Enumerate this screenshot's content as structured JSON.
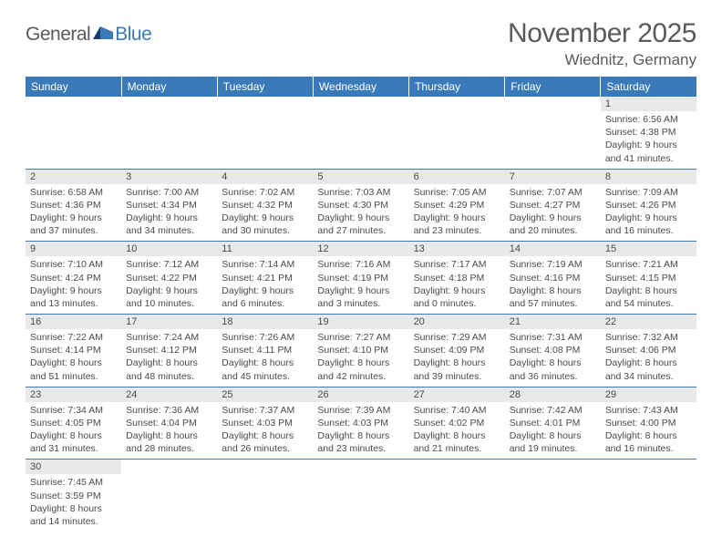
{
  "logo": {
    "text1": "General",
    "text2": "Blue"
  },
  "title": "November 2025",
  "location": "Wiednitz, Germany",
  "colors": {
    "header_bg": "#3a7ab8",
    "daynum_bg": "#e9e9e9",
    "text": "#4a4a4a",
    "rule": "#3a7ab8"
  },
  "weekdays": [
    "Sunday",
    "Monday",
    "Tuesday",
    "Wednesday",
    "Thursday",
    "Friday",
    "Saturday"
  ],
  "weeks": [
    [
      {
        "blank": true
      },
      {
        "blank": true
      },
      {
        "blank": true
      },
      {
        "blank": true
      },
      {
        "blank": true
      },
      {
        "blank": true
      },
      {
        "day": "1",
        "sunrise": "Sunrise: 6:56 AM",
        "sunset": "Sunset: 4:38 PM",
        "dl1": "Daylight: 9 hours",
        "dl2": "and 41 minutes."
      }
    ],
    [
      {
        "day": "2",
        "sunrise": "Sunrise: 6:58 AM",
        "sunset": "Sunset: 4:36 PM",
        "dl1": "Daylight: 9 hours",
        "dl2": "and 37 minutes."
      },
      {
        "day": "3",
        "sunrise": "Sunrise: 7:00 AM",
        "sunset": "Sunset: 4:34 PM",
        "dl1": "Daylight: 9 hours",
        "dl2": "and 34 minutes."
      },
      {
        "day": "4",
        "sunrise": "Sunrise: 7:02 AM",
        "sunset": "Sunset: 4:32 PM",
        "dl1": "Daylight: 9 hours",
        "dl2": "and 30 minutes."
      },
      {
        "day": "5",
        "sunrise": "Sunrise: 7:03 AM",
        "sunset": "Sunset: 4:30 PM",
        "dl1": "Daylight: 9 hours",
        "dl2": "and 27 minutes."
      },
      {
        "day": "6",
        "sunrise": "Sunrise: 7:05 AM",
        "sunset": "Sunset: 4:29 PM",
        "dl1": "Daylight: 9 hours",
        "dl2": "and 23 minutes."
      },
      {
        "day": "7",
        "sunrise": "Sunrise: 7:07 AM",
        "sunset": "Sunset: 4:27 PM",
        "dl1": "Daylight: 9 hours",
        "dl2": "and 20 minutes."
      },
      {
        "day": "8",
        "sunrise": "Sunrise: 7:09 AM",
        "sunset": "Sunset: 4:26 PM",
        "dl1": "Daylight: 9 hours",
        "dl2": "and 16 minutes."
      }
    ],
    [
      {
        "day": "9",
        "sunrise": "Sunrise: 7:10 AM",
        "sunset": "Sunset: 4:24 PM",
        "dl1": "Daylight: 9 hours",
        "dl2": "and 13 minutes."
      },
      {
        "day": "10",
        "sunrise": "Sunrise: 7:12 AM",
        "sunset": "Sunset: 4:22 PM",
        "dl1": "Daylight: 9 hours",
        "dl2": "and 10 minutes."
      },
      {
        "day": "11",
        "sunrise": "Sunrise: 7:14 AM",
        "sunset": "Sunset: 4:21 PM",
        "dl1": "Daylight: 9 hours",
        "dl2": "and 6 minutes."
      },
      {
        "day": "12",
        "sunrise": "Sunrise: 7:16 AM",
        "sunset": "Sunset: 4:19 PM",
        "dl1": "Daylight: 9 hours",
        "dl2": "and 3 minutes."
      },
      {
        "day": "13",
        "sunrise": "Sunrise: 7:17 AM",
        "sunset": "Sunset: 4:18 PM",
        "dl1": "Daylight: 9 hours",
        "dl2": "and 0 minutes."
      },
      {
        "day": "14",
        "sunrise": "Sunrise: 7:19 AM",
        "sunset": "Sunset: 4:16 PM",
        "dl1": "Daylight: 8 hours",
        "dl2": "and 57 minutes."
      },
      {
        "day": "15",
        "sunrise": "Sunrise: 7:21 AM",
        "sunset": "Sunset: 4:15 PM",
        "dl1": "Daylight: 8 hours",
        "dl2": "and 54 minutes."
      }
    ],
    [
      {
        "day": "16",
        "sunrise": "Sunrise: 7:22 AM",
        "sunset": "Sunset: 4:14 PM",
        "dl1": "Daylight: 8 hours",
        "dl2": "and 51 minutes."
      },
      {
        "day": "17",
        "sunrise": "Sunrise: 7:24 AM",
        "sunset": "Sunset: 4:12 PM",
        "dl1": "Daylight: 8 hours",
        "dl2": "and 48 minutes."
      },
      {
        "day": "18",
        "sunrise": "Sunrise: 7:26 AM",
        "sunset": "Sunset: 4:11 PM",
        "dl1": "Daylight: 8 hours",
        "dl2": "and 45 minutes."
      },
      {
        "day": "19",
        "sunrise": "Sunrise: 7:27 AM",
        "sunset": "Sunset: 4:10 PM",
        "dl1": "Daylight: 8 hours",
        "dl2": "and 42 minutes."
      },
      {
        "day": "20",
        "sunrise": "Sunrise: 7:29 AM",
        "sunset": "Sunset: 4:09 PM",
        "dl1": "Daylight: 8 hours",
        "dl2": "and 39 minutes."
      },
      {
        "day": "21",
        "sunrise": "Sunrise: 7:31 AM",
        "sunset": "Sunset: 4:08 PM",
        "dl1": "Daylight: 8 hours",
        "dl2": "and 36 minutes."
      },
      {
        "day": "22",
        "sunrise": "Sunrise: 7:32 AM",
        "sunset": "Sunset: 4:06 PM",
        "dl1": "Daylight: 8 hours",
        "dl2": "and 34 minutes."
      }
    ],
    [
      {
        "day": "23",
        "sunrise": "Sunrise: 7:34 AM",
        "sunset": "Sunset: 4:05 PM",
        "dl1": "Daylight: 8 hours",
        "dl2": "and 31 minutes."
      },
      {
        "day": "24",
        "sunrise": "Sunrise: 7:36 AM",
        "sunset": "Sunset: 4:04 PM",
        "dl1": "Daylight: 8 hours",
        "dl2": "and 28 minutes."
      },
      {
        "day": "25",
        "sunrise": "Sunrise: 7:37 AM",
        "sunset": "Sunset: 4:03 PM",
        "dl1": "Daylight: 8 hours",
        "dl2": "and 26 minutes."
      },
      {
        "day": "26",
        "sunrise": "Sunrise: 7:39 AM",
        "sunset": "Sunset: 4:03 PM",
        "dl1": "Daylight: 8 hours",
        "dl2": "and 23 minutes."
      },
      {
        "day": "27",
        "sunrise": "Sunrise: 7:40 AM",
        "sunset": "Sunset: 4:02 PM",
        "dl1": "Daylight: 8 hours",
        "dl2": "and 21 minutes."
      },
      {
        "day": "28",
        "sunrise": "Sunrise: 7:42 AM",
        "sunset": "Sunset: 4:01 PM",
        "dl1": "Daylight: 8 hours",
        "dl2": "and 19 minutes."
      },
      {
        "day": "29",
        "sunrise": "Sunrise: 7:43 AM",
        "sunset": "Sunset: 4:00 PM",
        "dl1": "Daylight: 8 hours",
        "dl2": "and 16 minutes."
      }
    ],
    [
      {
        "day": "30",
        "sunrise": "Sunrise: 7:45 AM",
        "sunset": "Sunset: 3:59 PM",
        "dl1": "Daylight: 8 hours",
        "dl2": "and 14 minutes."
      },
      {
        "blank": true
      },
      {
        "blank": true
      },
      {
        "blank": true
      },
      {
        "blank": true
      },
      {
        "blank": true
      },
      {
        "blank": true
      }
    ]
  ]
}
